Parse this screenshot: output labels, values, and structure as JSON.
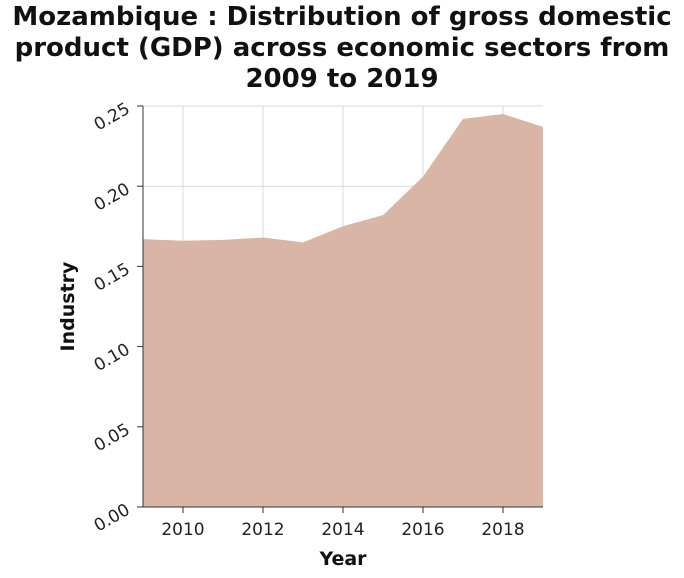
{
  "chart_data": {
    "type": "area",
    "title": "Mozambique : Distribution of gross domestic product (GDP) across economic sectors from 2009 to 2019",
    "xlabel": "Year",
    "ylabel": "Industry",
    "x": [
      2009,
      2010,
      2011,
      2012,
      2013,
      2014,
      2015,
      2016,
      2017,
      2018,
      2019
    ],
    "series": [
      {
        "values": [
          0.167,
          0.166,
          0.1665,
          0.168,
          0.165,
          0.175,
          0.182,
          0.206,
          0.242,
          0.245,
          0.237
        ]
      }
    ],
    "xlim": [
      2009,
      2019
    ],
    "ylim": [
      0,
      0.25
    ],
    "xticks": [
      {
        "value": 2010,
        "label": "2010"
      },
      {
        "value": 2012,
        "label": "2012"
      },
      {
        "value": 2014,
        "label": "2014"
      },
      {
        "value": 2016,
        "label": "2016"
      },
      {
        "value": 2018,
        "label": "2018"
      }
    ],
    "yticks": [
      {
        "value": 0,
        "label": "0.00"
      },
      {
        "value": 0.05,
        "label": "0.05"
      },
      {
        "value": 0.1,
        "label": "0.10"
      },
      {
        "value": 0.15,
        "label": "0.15"
      },
      {
        "value": 0.2,
        "label": "0.20"
      },
      {
        "value": 0.25,
        "label": "0.25"
      }
    ],
    "grid": true,
    "fill_color": "#d8b5a5",
    "grid_color": "#d9d9d9",
    "axis_color": "#333333"
  }
}
